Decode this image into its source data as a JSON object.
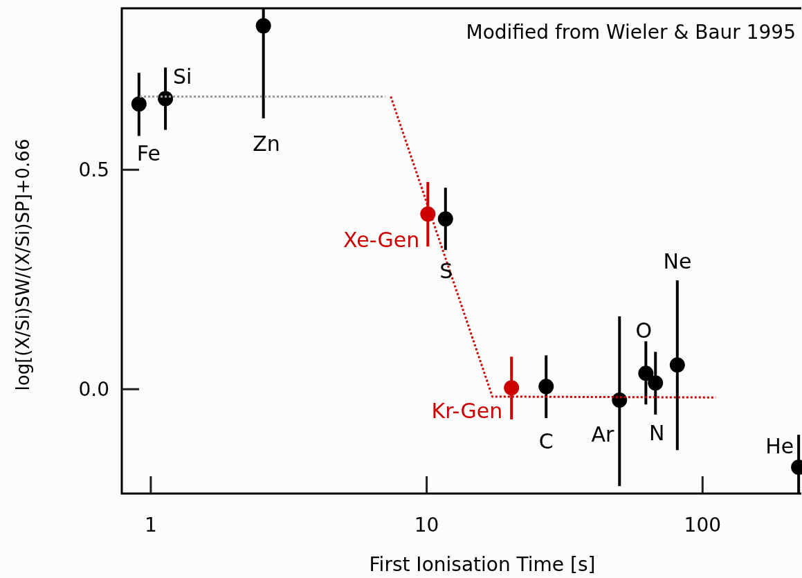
{
  "chart_data": {
    "type": "scatter",
    "xlabel": "First Ionisation Time [s]",
    "ylabel": "log[(X/Si)SW/(X/Si)SP]+0.66",
    "log": "x",
    "xlim": [
      0.785,
      228
    ],
    "ylim": [
      -0.238,
      0.868
    ],
    "xticks": [
      1,
      10,
      100
    ],
    "yticks": [
      {
        "value": 0,
        "label": "0.0"
      },
      {
        "value": 0.5,
        "label": "0.5"
      }
    ],
    "grid": false,
    "marker": "circle",
    "series": [
      {
        "color": "#000000",
        "x": [
          0.906,
          1.13,
          2.56,
          11.7,
          27.1,
          50,
          62.3,
          67.5,
          81,
          223
        ],
        "values": [
          0.65,
          0.662,
          0.828,
          0.388,
          0.006,
          -0.025,
          0.036,
          0.014,
          0.055,
          -0.178
        ],
        "errors": [
          [
            0.577,
            0.721
          ],
          [
            0.591,
            0.733
          ],
          [
            0.617,
            0.868
          ],
          [
            0.317,
            0.459
          ],
          [
            -0.066,
            0.077
          ],
          [
            -0.221,
            0.166
          ],
          [
            -0.035,
            0.109
          ],
          [
            -0.058,
            0.085
          ],
          [
            -0.139,
            0.248
          ],
          [
            -0.238,
            -0.104
          ]
        ]
      },
      {
        "color": "#cc0000",
        "x": [
          10.1,
          20.3
        ],
        "values": [
          0.399,
          0.003
        ],
        "errors": [
          [
            0.325,
            0.472
          ],
          [
            -0.069,
            0.074
          ]
        ]
      },
      {
        "type": "line",
        "color": "#999999",
        "line_style": "dotted",
        "marker": "none",
        "x": [
          0.912,
          7.07
        ],
        "values": [
          0.667,
          0.667
        ]
      },
      {
        "type": "line",
        "color": "#cc0000",
        "line_style": "dotted",
        "marker": "none",
        "x": [
          7.41,
          17.3,
          111.6
        ],
        "values": [
          0.667,
          -0.017,
          -0.019
        ]
      }
    ],
    "annotations": [
      {
        "text": "Fe",
        "x": 0.906,
        "y": 0.65
      },
      {
        "text": "Si",
        "x": 1.13,
        "y": 0.662
      },
      "Zn",
      {
        "text": "S",
        "x": 11.7,
        "y": 0.388
      },
      {
        "text": "Xe-Gen",
        "x": 10.1,
        "y": 0.399
      },
      {
        "text": "Kr-Gen",
        "x": 20.3,
        "y": 0.003
      },
      {
        "text": "C",
        "x": 27.1,
        "y": 0.006
      },
      {
        "text": "Ar",
        "x": 50,
        "y": -0.025
      },
      {
        "text": "O",
        "x": 62.3,
        "y": 0.036
      },
      {
        "text": "N",
        "x": 67.5,
        "y": 0.014
      },
      "Ne",
      {
        "text": "He",
        "x": 223,
        "y": -0.178
      },
      "Modified from Wieler & Baur 1995"
    ]
  }
}
